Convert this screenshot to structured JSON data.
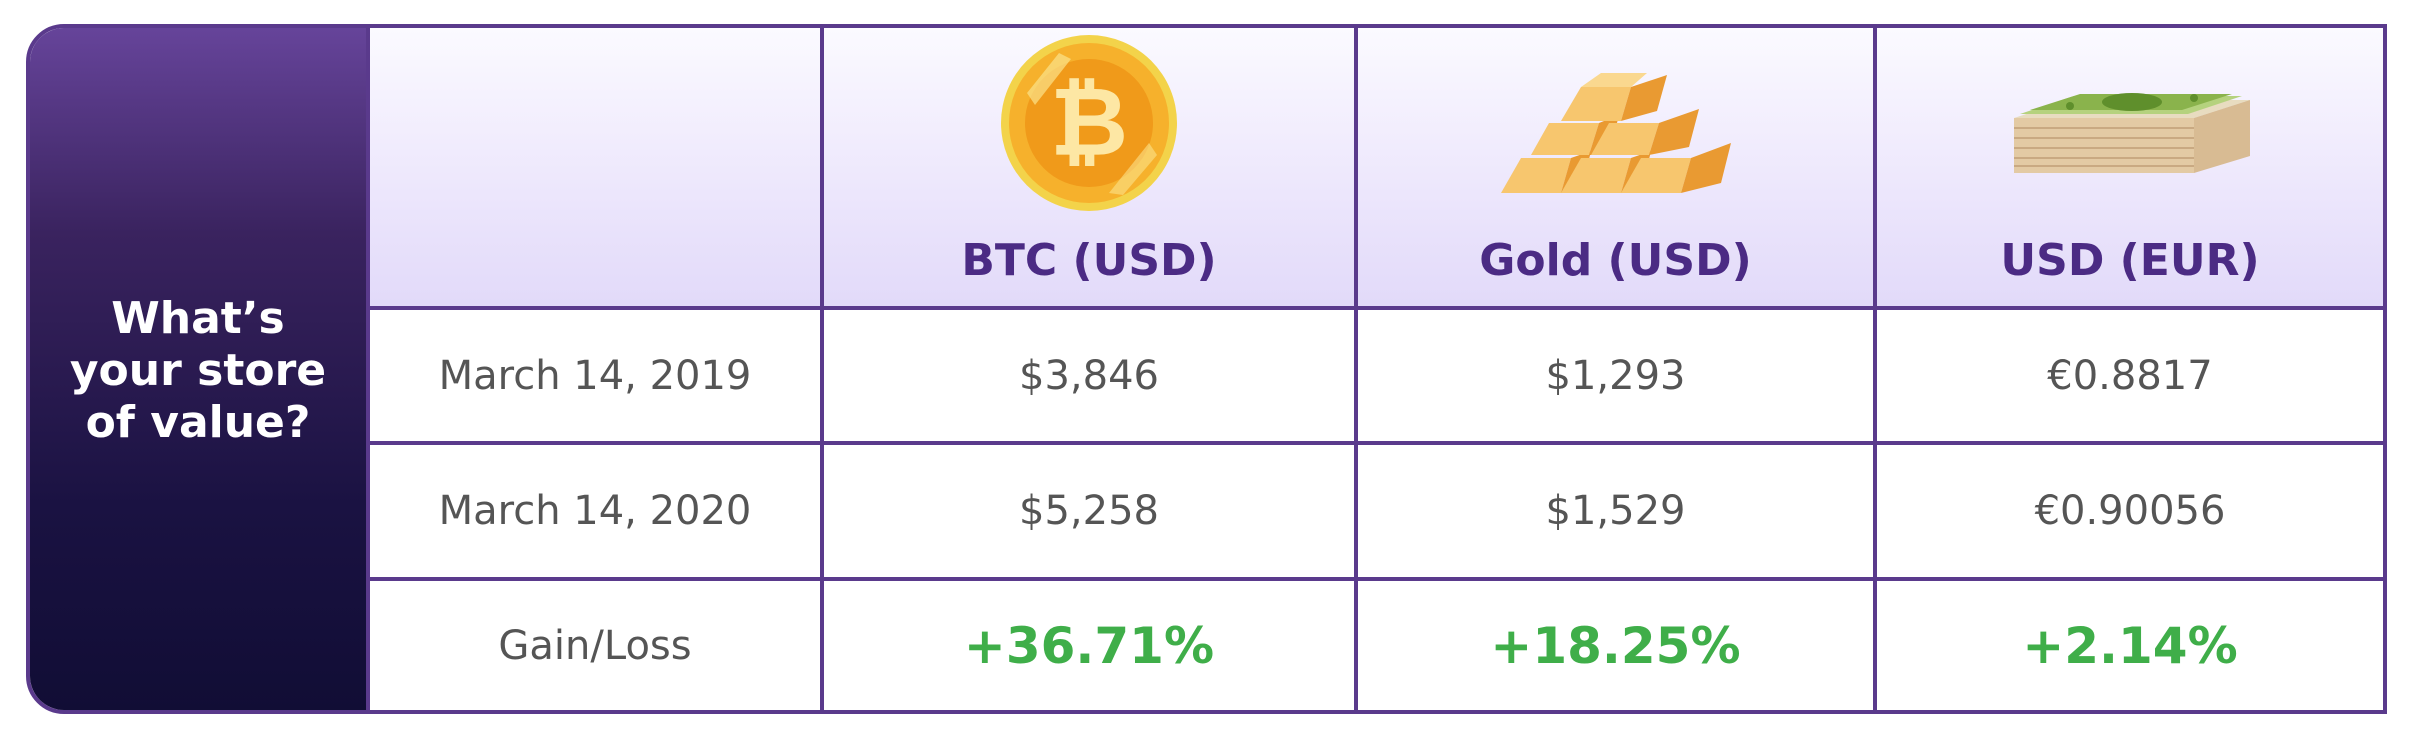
{
  "sidebar": {
    "title": "What’s your store of value?"
  },
  "columns": [
    {
      "label": "BTC (USD)",
      "icon": "bitcoin-coin-icon"
    },
    {
      "label": "Gold (USD)",
      "icon": "gold-bars-icon"
    },
    {
      "label": "USD (EUR)",
      "icon": "cash-stack-icon"
    }
  ],
  "rows": [
    {
      "label": "March 14, 2019",
      "values": [
        "$3,846",
        "$1,293",
        "€0.8817"
      ]
    },
    {
      "label": "March 14, 2020",
      "values": [
        "$5,258",
        "$1,529",
        "€0.90056"
      ]
    },
    {
      "label": "Gain/Loss",
      "values": [
        "+36.71%",
        "+18.25%",
        "+2.14%"
      ]
    }
  ],
  "colors": {
    "frame": "#5a3a8c",
    "header_text": "#4b2b84",
    "gain": "#3fae49",
    "body_text": "#555555"
  }
}
